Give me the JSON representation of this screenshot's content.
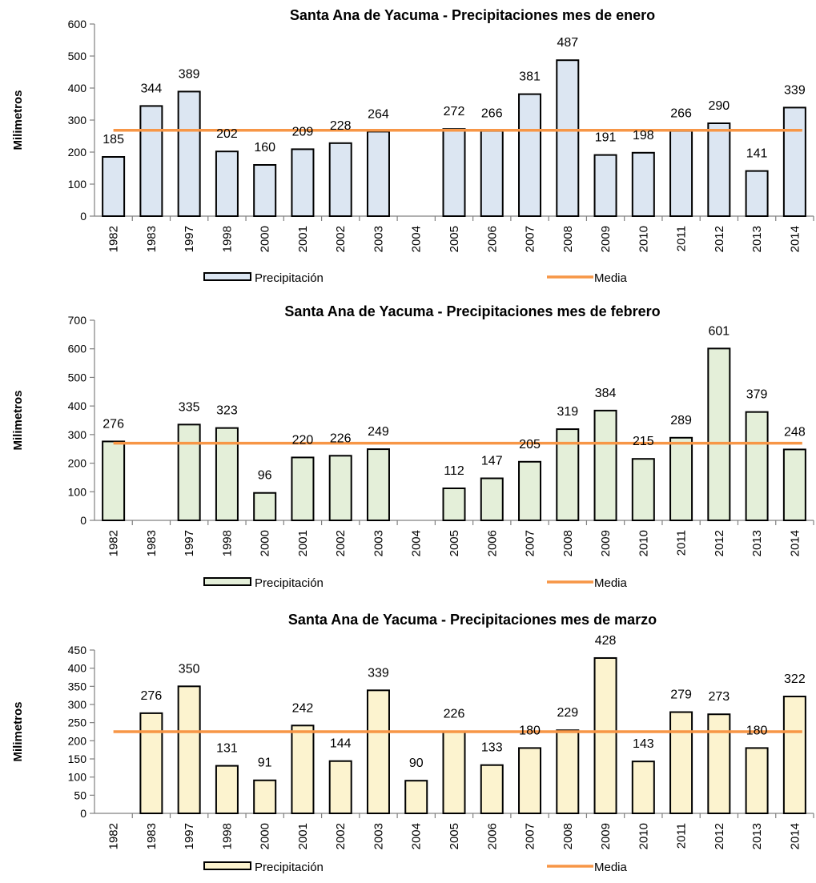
{
  "chart_data": [
    {
      "type": "bar",
      "title": "Santa Ana de Yacuma - Precipitaciones mes de enero",
      "xlabel": "",
      "ylabel": "Milimetros",
      "ylim": [
        0,
        600
      ],
      "ytick_step": 100,
      "categories": [
        "1982",
        "1983",
        "1997",
        "1998",
        "2000",
        "2001",
        "2002",
        "2003",
        "2004",
        "2005",
        "2006",
        "2007",
        "2008",
        "2009",
        "2010",
        "2011",
        "2012",
        "2013",
        "2014"
      ],
      "series": [
        {
          "name": "Precipitación",
          "kind": "bar",
          "color": "#dce6f2",
          "values": [
            185,
            344,
            389,
            202,
            160,
            209,
            228,
            264,
            null,
            272,
            266,
            381,
            487,
            191,
            198,
            266,
            290,
            141,
            339
          ]
        },
        {
          "name": "Media",
          "kind": "line",
          "color": "#f79646",
          "value": 268
        }
      ],
      "grid": false,
      "legend": "bottom"
    },
    {
      "type": "bar",
      "title": "Santa Ana de Yacuma - Precipitaciones mes de febrero",
      "xlabel": "",
      "ylabel": "Milimetros",
      "ylim": [
        0,
        700
      ],
      "ytick_step": 100,
      "categories": [
        "1982",
        "1983",
        "1997",
        "1998",
        "2000",
        "2001",
        "2002",
        "2003",
        "2004",
        "2005",
        "2006",
        "2007",
        "2008",
        "2009",
        "2010",
        "2011",
        "2012",
        "2013",
        "2014"
      ],
      "series": [
        {
          "name": "Precipitación",
          "kind": "bar",
          "color": "#e4efd9",
          "values": [
            276,
            null,
            335,
            323,
            96,
            220,
            226,
            249,
            null,
            112,
            147,
            205,
            319,
            384,
            215,
            289,
            601,
            379,
            248
          ]
        },
        {
          "name": "Media",
          "kind": "line",
          "color": "#f79646",
          "value": 270
        }
      ],
      "grid": false,
      "legend": "bottom"
    },
    {
      "type": "bar",
      "title": "Santa Ana de Yacuma - Precipitaciones mes de marzo",
      "xlabel": "",
      "ylabel": "Milimetros",
      "ylim": [
        0,
        450
      ],
      "ytick_step": 50,
      "categories": [
        "1982",
        "1983",
        "1997",
        "1998",
        "2000",
        "2001",
        "2002",
        "2003",
        "2004",
        "2005",
        "2006",
        "2007",
        "2008",
        "2009",
        "2010",
        "2011",
        "2012",
        "2013",
        "2014"
      ],
      "series": [
        {
          "name": "Precipitación",
          "kind": "bar",
          "color": "#fcf3cf",
          "values": [
            null,
            276,
            350,
            131,
            91,
            242,
            144,
            339,
            90,
            226,
            133,
            180,
            229,
            428,
            143,
            279,
            273,
            180,
            322
          ]
        },
        {
          "name": "Media",
          "kind": "line",
          "color": "#f79646",
          "value": 225
        }
      ],
      "grid": false,
      "legend": "bottom"
    }
  ]
}
